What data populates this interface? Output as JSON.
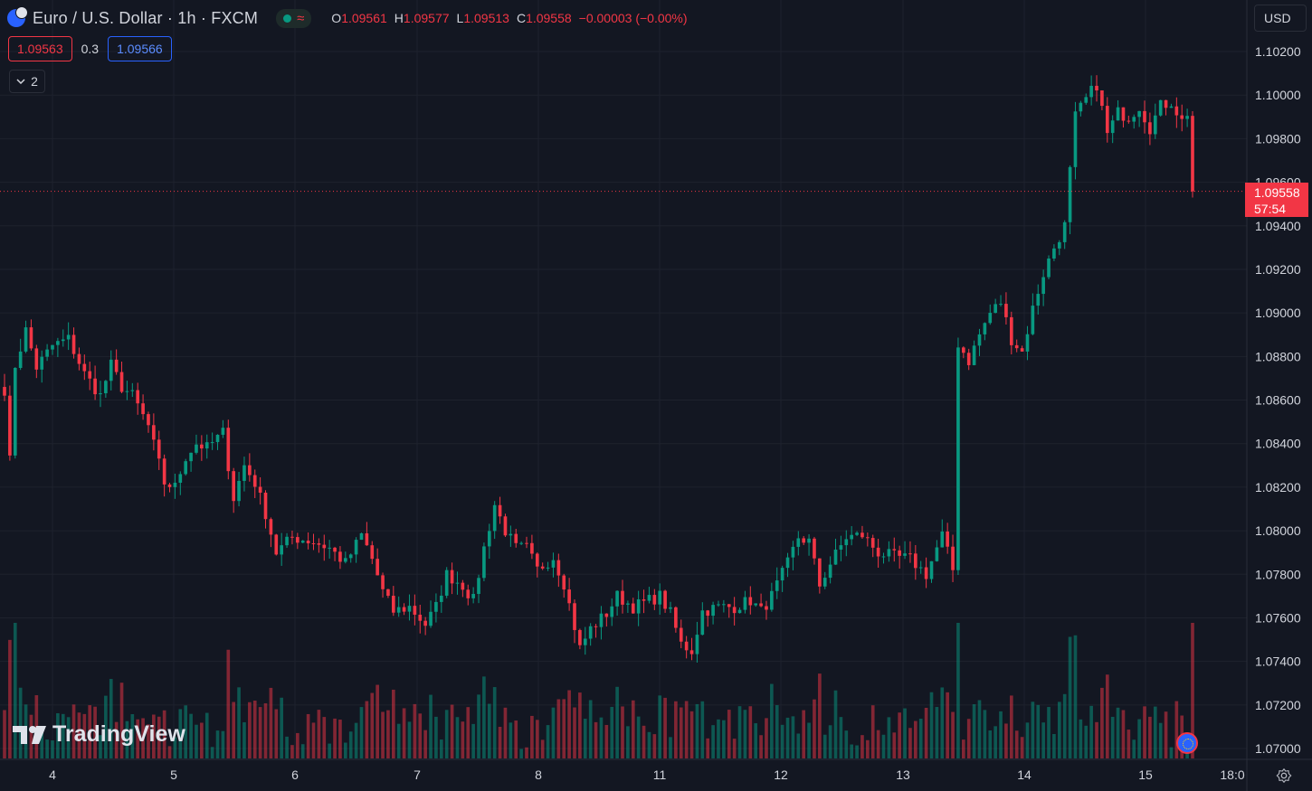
{
  "header": {
    "symbol_title": "Euro / U.S. Dollar · 1h · FXCM",
    "ohlc": [
      {
        "key": "O",
        "value": "1.09561"
      },
      {
        "key": "H",
        "value": "1.09577"
      },
      {
        "key": "L",
        "value": "1.09513"
      },
      {
        "key": "C",
        "value": "1.09558"
      }
    ],
    "change": "−0.00003 (−0.00%)"
  },
  "quote": {
    "sell": "1.09563",
    "spread": "0.3",
    "buy": "1.09566"
  },
  "indicators_toggle": {
    "count": "2"
  },
  "currency_button": "USD",
  "last_price_tag": {
    "price": "1.09558",
    "countdown": "57:54"
  },
  "logo_text": "TradingView",
  "colors": {
    "up": "#089981",
    "down": "#f23645",
    "background": "#131722",
    "grid": "#1e222d"
  },
  "chart_data": {
    "type": "candlestick",
    "y_ticks": [
      "1.10200",
      "1.10000",
      "1.09800",
      "1.09600",
      "1.09400",
      "1.09200",
      "1.09000",
      "1.08800",
      "1.08600",
      "1.08400",
      "1.08200",
      "1.08000",
      "1.07800",
      "1.07600",
      "1.07400",
      "1.07200",
      "1.07000"
    ],
    "y_range": [
      1.0697,
      1.1025
    ],
    "x_ticks": [
      "4",
      "5",
      "6",
      "7",
      "8",
      "11",
      "12",
      "13",
      "14",
      "15",
      "18:0"
    ],
    "last_price": 1.09558,
    "waypoints": [
      [
        0,
        1.0865
      ],
      [
        1,
        1.0832
      ],
      [
        2,
        1.0876
      ],
      [
        4,
        1.0892
      ],
      [
        6,
        1.0875
      ],
      [
        9,
        1.0885
      ],
      [
        12,
        1.0888
      ],
      [
        15,
        1.0872
      ],
      [
        18,
        1.0862
      ],
      [
        20,
        1.0876
      ],
      [
        22,
        1.0866
      ],
      [
        24,
        1.0862
      ],
      [
        27,
        1.0848
      ],
      [
        30,
        1.0822
      ],
      [
        32,
        1.082
      ],
      [
        34,
        1.0834
      ],
      [
        36,
        1.084
      ],
      [
        38,
        1.0838
      ],
      [
        41,
        1.0845
      ],
      [
        43,
        1.0815
      ],
      [
        45,
        1.083
      ],
      [
        47,
        1.0822
      ],
      [
        49,
        1.0808
      ],
      [
        51,
        1.079
      ],
      [
        54,
        1.0797
      ],
      [
        58,
        1.0795
      ],
      [
        61,
        1.0792
      ],
      [
        64,
        1.0785
      ],
      [
        67,
        1.0798
      ],
      [
        69,
        1.0787
      ],
      [
        71,
        1.0772
      ],
      [
        73,
        1.0763
      ],
      [
        76,
        1.0765
      ],
      [
        79,
        1.0757
      ],
      [
        81,
        1.0765
      ],
      [
        83,
        1.078
      ],
      [
        86,
        1.0775
      ],
      [
        88,
        1.0768
      ],
      [
        90,
        1.0792
      ],
      [
        92,
        1.0812
      ],
      [
        94,
        1.08
      ],
      [
        96,
        1.0792
      ],
      [
        98,
        1.0792
      ],
      [
        100,
        1.0782
      ],
      [
        103,
        1.0788
      ],
      [
        105,
        1.0776
      ],
      [
        108,
        1.0746
      ],
      [
        110,
        1.0755
      ],
      [
        113,
        1.0762
      ],
      [
        115,
        1.077
      ],
      [
        118,
        1.0765
      ],
      [
        121,
        1.0768
      ],
      [
        123,
        1.077
      ],
      [
        125,
        1.0762
      ],
      [
        127,
        1.0748
      ],
      [
        129,
        1.0745
      ],
      [
        131,
        1.0763
      ],
      [
        134,
        1.0765
      ],
      [
        137,
        1.0765
      ],
      [
        140,
        1.0768
      ],
      [
        142,
        1.0763
      ],
      [
        144,
        1.077
      ],
      [
        147,
        1.0785
      ],
      [
        149,
        1.0797
      ],
      [
        151,
        1.0795
      ],
      [
        153,
        1.0775
      ],
      [
        155,
        1.0785
      ],
      [
        158,
        1.0797
      ],
      [
        161,
        1.0798
      ],
      [
        164,
        1.079
      ],
      [
        167,
        1.0788
      ],
      [
        170,
        1.0787
      ],
      [
        173,
        1.078
      ],
      [
        176,
        1.0798
      ],
      [
        178,
        1.0782
      ],
      [
        179,
        1.0886
      ],
      [
        181,
        1.0878
      ],
      [
        183,
        1.089
      ],
      [
        185,
        1.09
      ],
      [
        187,
        1.0905
      ],
      [
        189,
        1.0888
      ],
      [
        191,
        1.0882
      ],
      [
        193,
        1.0902
      ],
      [
        195,
        1.0918
      ],
      [
        197,
        1.093
      ],
      [
        199,
        1.094
      ],
      [
        201,
        1.099
      ],
      [
        203,
        1.0998
      ],
      [
        205,
        1.1005
      ],
      [
        207,
        1.0982
      ],
      [
        209,
        1.0992
      ],
      [
        211,
        1.099
      ],
      [
        213,
        1.0995
      ],
      [
        215,
        1.0985
      ],
      [
        217,
        1.0995
      ],
      [
        219,
        1.0997
      ],
      [
        221,
        1.0988
      ],
      [
        222,
        1.0992
      ],
      [
        223,
        1.0956
      ]
    ]
  }
}
